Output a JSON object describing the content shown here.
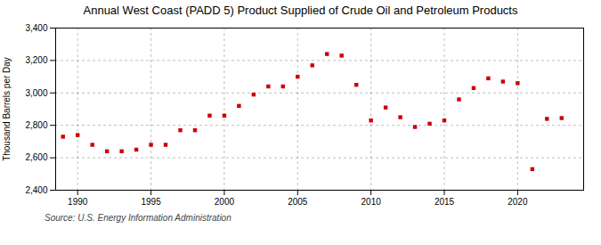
{
  "chart_data": {
    "type": "scatter",
    "title": "Annual West Coast (PADD 5) Product Supplied of Crude Oil and Petroleum Products",
    "ylabel": "Thousand Barrels per Day",
    "source": "Source: U.S. Energy Information Administration",
    "x": [
      1989,
      1990,
      1991,
      1992,
      1993,
      1994,
      1995,
      1996,
      1997,
      1998,
      1999,
      2000,
      2001,
      2002,
      2003,
      2004,
      2005,
      2006,
      2007,
      2008,
      2009,
      2010,
      2011,
      2012,
      2013,
      2014,
      2015,
      2016,
      2017,
      2018,
      2019,
      2020,
      2021,
      2022,
      2023
    ],
    "values": [
      2730,
      2740,
      2680,
      2640,
      2640,
      2650,
      2680,
      2680,
      2770,
      2770,
      2860,
      2860,
      2920,
      2990,
      3040,
      3040,
      3100,
      3170,
      3240,
      3230,
      3050,
      2830,
      2910,
      2850,
      2790,
      2810,
      2830,
      2960,
      3030,
      3090,
      3070,
      3060,
      2530,
      2840,
      2845
    ],
    "color": "#cc0000",
    "marker": "square",
    "xlim": [
      1988.5,
      2024.5
    ],
    "xticks": [
      1990,
      1995,
      2000,
      2005,
      2010,
      2015,
      2020
    ],
    "ylim": [
      2400,
      3400
    ],
    "yticks": [
      {
        "value": 2400,
        "label": "2,400"
      },
      {
        "value": 2600,
        "label": "2,600"
      },
      {
        "value": 2800,
        "label": "2,800"
      },
      {
        "value": 3000,
        "label": "3,000"
      },
      {
        "value": 3200,
        "label": "3,200"
      },
      {
        "value": 3400,
        "label": "3,400"
      }
    ],
    "grid": true
  }
}
